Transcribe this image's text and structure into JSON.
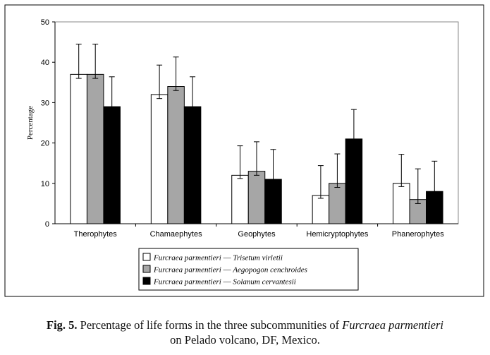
{
  "chart_data": {
    "type": "bar",
    "ylabel": "Percentage",
    "ylim": [
      0,
      50
    ],
    "yticks": [
      0,
      10,
      20,
      30,
      40,
      50
    ],
    "grid": false,
    "legend_position": "bottom",
    "categories": [
      "Therophytes",
      "Chamaephytes",
      "Geophytes",
      "Hemicryptophytes",
      "Phanerophytes"
    ],
    "series": [
      {
        "name": "Furcraea parmentieri — Trisetum virletii",
        "color": "#ffffff",
        "values": [
          37,
          32,
          12,
          7,
          10
        ],
        "error_upper": [
          44.5,
          39.3,
          19.3,
          14.4,
          17.2
        ],
        "error_lower": [
          36,
          31,
          11.2,
          6.3,
          9.2
        ]
      },
      {
        "name": "Furcraea parmentieri — Aegopogon cenchroides",
        "color": "#a6a6a6",
        "values": [
          37,
          34,
          13,
          10,
          6
        ],
        "error_upper": [
          44.5,
          41.3,
          20.3,
          17.3,
          13.6
        ],
        "error_lower": [
          36,
          33,
          12,
          9,
          5
        ]
      },
      {
        "name": "Furcraea parmentieri — Solanum cervantesii",
        "color": "#000000",
        "values": [
          29,
          29,
          11,
          21,
          8
        ],
        "error_upper": [
          36.4,
          36.4,
          18.4,
          28.3,
          15.5
        ],
        "error_lower": [
          28,
          28,
          10,
          20,
          7
        ]
      }
    ]
  },
  "caption": {
    "label": "Fig. 5.",
    "text_before": " Percentage of life forms in the three subcommunities of ",
    "species": "Furcraea parmentieri",
    "text_after": "on Pelado volcano, DF, Mexico."
  }
}
